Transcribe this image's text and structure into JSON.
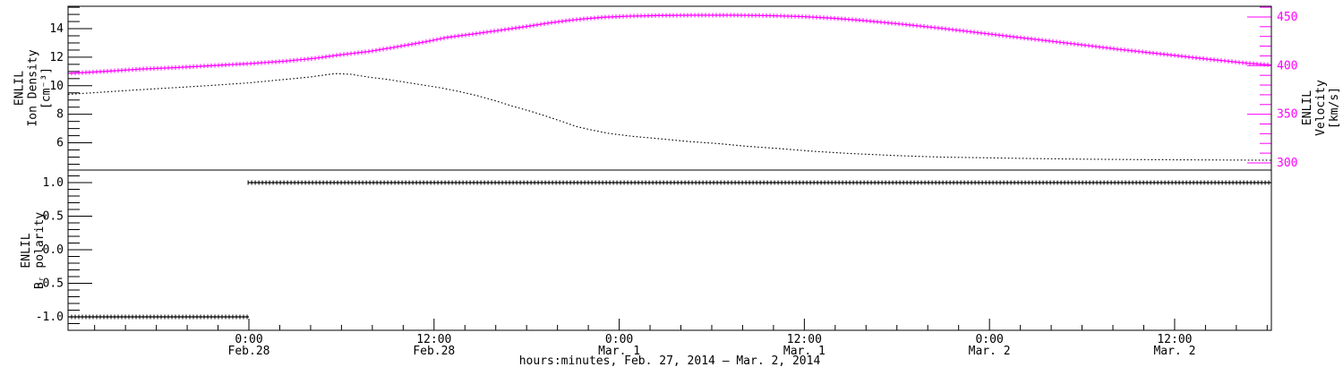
{
  "colors": {
    "background": "#ffffff",
    "axis": "#000000",
    "density_series": "#000000",
    "velocity_series": "#ff00ff",
    "polarity_series": "#000000",
    "velocity_axis": "#ff00ff"
  },
  "chart_data": {
    "type": "line",
    "x_axis": {
      "title": "hours:minutes, Feb. 27, 2014 – Mar.  2, 2014",
      "minor_step_frac": 0.025643,
      "major_ticks": [
        {
          "frac": 0.1503,
          "line1": "0:00",
          "line2": "Feb.28"
        },
        {
          "frac": 0.30416,
          "line1": "12:00",
          "line2": "Feb.28"
        },
        {
          "frac": 0.45802,
          "line1": "0:00",
          "line2": "Mar. 1"
        },
        {
          "frac": 0.61188,
          "line1": "12:00",
          "line2": "Mar. 1"
        },
        {
          "frac": 0.76574,
          "line1": "0:00",
          "line2": "Mar. 2"
        },
        {
          "frac": 0.9196,
          "line1": "12:00",
          "line2": "Mar. 2"
        }
      ]
    },
    "panels": [
      {
        "id": "top",
        "y_axes": {
          "left": {
            "title_lines": [
              "ENLIL",
              "Ion Density",
              "[cm⁻³]"
            ],
            "unit": "cm-3",
            "tick_labels": [
              "14",
              "12",
              "10",
              "8",
              "6"
            ],
            "tick_values": [
              14,
              12,
              10,
              8,
              6
            ],
            "min": 4.09,
            "max": 15.57,
            "minor_step": 0.5,
            "color": "#000000"
          },
          "right": {
            "title_lines": [
              "ENLIL",
              "Velocity",
              "[km/s]"
            ],
            "unit": "km/s",
            "tick_labels": [
              "450",
              "400",
              "350",
              "300"
            ],
            "tick_values": [
              450,
              400,
              350,
              300
            ],
            "min": 292.6,
            "max": 461.0,
            "minor_step": 10,
            "color": "#ff00ff"
          }
        },
        "series": [
          {
            "name": "ion_density",
            "axis": "left",
            "style": "dotted",
            "color": "#000000",
            "points": [
              [
                0.0,
                9.4
              ],
              [
                0.028,
                9.55
              ],
              [
                0.055,
                9.7
              ],
              [
                0.085,
                9.85
              ],
              [
                0.115,
                10.0
              ],
              [
                0.15,
                10.2
              ],
              [
                0.175,
                10.4
              ],
              [
                0.2,
                10.6
              ],
              [
                0.222,
                10.85
              ],
              [
                0.235,
                10.8
              ],
              [
                0.25,
                10.6
              ],
              [
                0.265,
                10.45
              ],
              [
                0.28,
                10.25
              ],
              [
                0.295,
                10.05
              ],
              [
                0.31,
                9.85
              ],
              [
                0.325,
                9.6
              ],
              [
                0.34,
                9.3
              ],
              [
                0.355,
                8.95
              ],
              [
                0.37,
                8.55
              ],
              [
                0.385,
                8.2
              ],
              [
                0.398,
                7.85
              ],
              [
                0.412,
                7.45
              ],
              [
                0.422,
                7.15
              ],
              [
                0.435,
                6.9
              ],
              [
                0.45,
                6.65
              ],
              [
                0.47,
                6.45
              ],
              [
                0.49,
                6.3
              ],
              [
                0.515,
                6.1
              ],
              [
                0.54,
                5.95
              ],
              [
                0.565,
                5.75
              ],
              [
                0.59,
                5.6
              ],
              [
                0.62,
                5.4
              ],
              [
                0.65,
                5.25
              ],
              [
                0.69,
                5.1
              ],
              [
                0.725,
                5.0
              ],
              [
                0.765,
                4.95
              ],
              [
                0.8,
                4.9
              ],
              [
                0.85,
                4.85
              ],
              [
                0.9,
                4.82
              ],
              [
                0.95,
                4.8
              ],
              [
                1.0,
                4.78
              ]
            ]
          },
          {
            "name": "velocity",
            "axis": "right",
            "style": "plus_markers",
            "color": "#ff00ff",
            "points": [
              [
                0.0,
                392
              ],
              [
                0.03,
                394
              ],
              [
                0.061,
                396.5
              ],
              [
                0.09,
                398
              ],
              [
                0.12,
                400
              ],
              [
                0.15,
                402
              ],
              [
                0.18,
                404.5
              ],
              [
                0.205,
                407.5
              ],
              [
                0.226,
                411
              ],
              [
                0.25,
                414.5
              ],
              [
                0.272,
                419
              ],
              [
                0.295,
                424
              ],
              [
                0.315,
                429
              ],
              [
                0.34,
                433
              ],
              [
                0.36,
                436.5
              ],
              [
                0.38,
                440
              ],
              [
                0.398,
                443.5
              ],
              [
                0.413,
                446
              ],
              [
                0.428,
                448
              ],
              [
                0.446,
                449.8
              ],
              [
                0.465,
                450.8
              ],
              [
                0.49,
                451.5
              ],
              [
                0.52,
                451.8
              ],
              [
                0.555,
                451.8
              ],
              [
                0.585,
                451.3
              ],
              [
                0.612,
                450.3
              ],
              [
                0.635,
                448.8
              ],
              [
                0.66,
                446.5
              ],
              [
                0.69,
                443
              ],
              [
                0.725,
                438.5
              ],
              [
                0.762,
                433
              ],
              [
                0.8,
                427.5
              ],
              [
                0.838,
                422
              ],
              [
                0.875,
                416.5
              ],
              [
                0.912,
                411.5
              ],
              [
                0.948,
                406.5
              ],
              [
                0.98,
                402.5
              ],
              [
                1.0,
                400.5
              ]
            ]
          }
        ]
      },
      {
        "id": "bottom",
        "y_axes": {
          "left": {
            "title_lines": [
              "ENLIL",
              "Bᵣ polarity"
            ],
            "unit": "",
            "tick_labels": [
              "1.0",
              "0.5",
              "0.0",
              "-0.5",
              "-1.0"
            ],
            "tick_values": [
              1.0,
              0.5,
              0.0,
              -0.5,
              -1.0
            ],
            "min": -1.2,
            "max": 1.1867,
            "minor_step": 0.1,
            "color": "#000000"
          }
        },
        "series": [
          {
            "name": "br_polarity",
            "axis": "left",
            "style": "plus_markers",
            "color": "#000000",
            "segments": [
              [
                [
                  0.0,
                  -1
                ],
                [
                  0.1503,
                  -1
                ]
              ],
              [
                [
                  0.1496,
                  1
                ],
                [
                  1.0,
                  1
                ]
              ]
            ]
          }
        ]
      }
    ]
  }
}
